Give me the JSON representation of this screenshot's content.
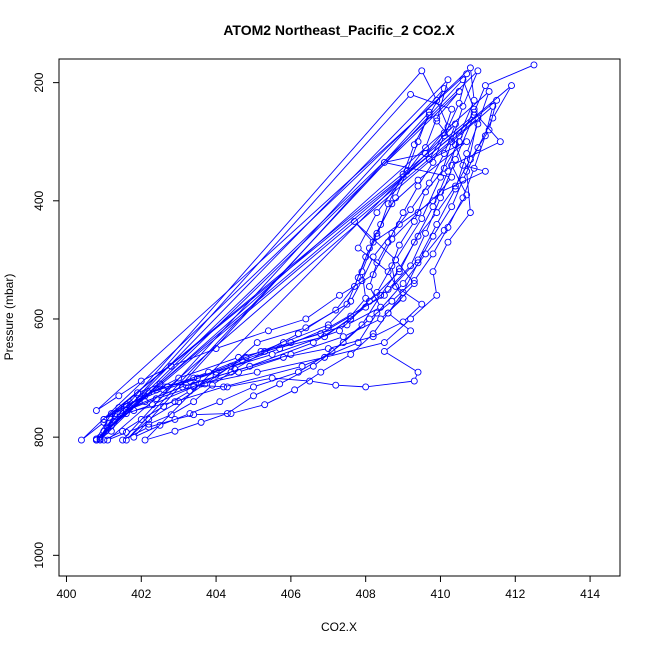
{
  "chart_data": {
    "type": "scatter",
    "title": "ATOM2 Northeast_Pacific_2 CO2.X",
    "xlabel": "CO2.X",
    "ylabel": "Pressure (mbar)",
    "xlim": [
      399.8,
      414.8
    ],
    "ylim": [
      1035,
      160
    ],
    "y_reversed": true,
    "x_ticks": [
      400,
      402,
      404,
      406,
      408,
      410,
      412,
      414
    ],
    "y_ticks": [
      200,
      400,
      600,
      800,
      1000
    ],
    "grid": false,
    "legend": "none",
    "marker": "open-circle",
    "line_connected": true,
    "series": [
      {
        "color": "#0000ff",
        "points": [
          [
            412.5,
            170
          ],
          [
            411.2,
            205
          ],
          [
            410.9,
            250
          ],
          [
            411.6,
            300
          ],
          [
            410.3,
            340
          ],
          [
            410.7,
            390
          ],
          [
            410.1,
            450
          ],
          [
            409.6,
            490
          ],
          [
            409.0,
            540
          ],
          [
            408.3,
            590
          ],
          [
            407.8,
            640
          ],
          [
            406.3,
            680
          ],
          [
            404.2,
            715
          ],
          [
            402.9,
            740
          ],
          [
            401.8,
            755
          ],
          [
            401.0,
            775
          ],
          [
            400.4,
            805
          ],
          [
            410.8,
            175
          ],
          [
            410.9,
            230
          ],
          [
            410.5,
            290
          ],
          [
            410.2,
            350
          ],
          [
            409.8,
            410
          ],
          [
            409.3,
            470
          ],
          [
            408.9,
            520
          ],
          [
            408.1,
            570
          ],
          [
            407.3,
            620
          ],
          [
            405.5,
            660
          ],
          [
            403.4,
            700
          ],
          [
            402.2,
            725
          ],
          [
            401.3,
            760
          ],
          [
            400.9,
            800
          ],
          [
            411.0,
            180
          ],
          [
            410.6,
            240
          ],
          [
            410.3,
            300
          ],
          [
            410.0,
            360
          ],
          [
            409.5,
            430
          ],
          [
            408.8,
            500
          ],
          [
            408.3,
            555
          ],
          [
            407.6,
            600
          ],
          [
            406.6,
            640
          ],
          [
            404.9,
            680
          ],
          [
            403.1,
            715
          ],
          [
            401.7,
            750
          ],
          [
            401.1,
            785
          ],
          [
            400.8,
            805
          ],
          [
            411.3,
            215
          ],
          [
            411.0,
            270
          ],
          [
            410.7,
            320
          ],
          [
            410.4,
            380
          ],
          [
            409.9,
            440
          ],
          [
            409.4,
            500
          ],
          [
            408.5,
            560
          ],
          [
            407.0,
            615
          ],
          [
            405.7,
            650
          ],
          [
            404.0,
            690
          ],
          [
            402.6,
            720
          ],
          [
            401.6,
            745
          ],
          [
            401.0,
            770
          ],
          [
            410.9,
            255
          ],
          [
            410.4,
            330
          ],
          [
            410.0,
            395
          ],
          [
            409.6,
            455
          ],
          [
            409.2,
            510
          ],
          [
            408.6,
            550
          ],
          [
            408.0,
            580
          ],
          [
            406.9,
            630
          ],
          [
            404.6,
            665
          ],
          [
            403.0,
            700
          ],
          [
            402.1,
            730
          ],
          [
            401.5,
            760
          ],
          [
            401.2,
            790
          ],
          [
            400.8,
            805
          ],
          [
            409.5,
            180
          ],
          [
            409.9,
            230
          ],
          [
            410.2,
            275
          ],
          [
            409.6,
            320
          ],
          [
            408.5,
            335
          ],
          [
            410.3,
            360
          ],
          [
            409.8,
            400
          ],
          [
            408.9,
            440
          ],
          [
            408.2,
            470
          ],
          [
            407.7,
            435
          ],
          [
            408.8,
            500
          ],
          [
            409.3,
            540
          ],
          [
            408.6,
            590
          ],
          [
            409.2,
            620
          ],
          [
            408.5,
            655
          ],
          [
            409.4,
            690
          ],
          [
            409.3,
            705
          ],
          [
            408.0,
            715
          ],
          [
            407.2,
            712
          ],
          [
            406.5,
            705
          ],
          [
            405.5,
            700
          ],
          [
            404.3,
            715
          ],
          [
            403.4,
            712
          ],
          [
            402.5,
            710
          ],
          [
            401.9,
            725
          ],
          [
            401.4,
            750
          ],
          [
            401.1,
            783
          ],
          [
            400.9,
            805
          ],
          [
            410.5,
            215
          ],
          [
            409.9,
            260
          ],
          [
            409.6,
            310
          ],
          [
            409.0,
            360
          ],
          [
            408.3,
            420
          ],
          [
            407.8,
            480
          ],
          [
            408.6,
            520
          ],
          [
            409.0,
            565
          ],
          [
            408.4,
            600
          ],
          [
            407.4,
            630
          ],
          [
            406.0,
            660
          ],
          [
            404.4,
            690
          ],
          [
            403.2,
            712
          ],
          [
            402.1,
            740
          ],
          [
            401.3,
            765
          ],
          [
            400.9,
            803
          ],
          [
            409.2,
            220
          ],
          [
            410.3,
            245
          ],
          [
            410.1,
            285
          ],
          [
            409.7,
            330
          ],
          [
            410.7,
            300
          ],
          [
            409.4,
            365
          ],
          [
            408.7,
            405
          ],
          [
            408.3,
            455
          ],
          [
            407.9,
            520
          ],
          [
            408.0,
            565
          ],
          [
            407.6,
            595
          ],
          [
            406.8,
            625
          ],
          [
            405.2,
            655
          ],
          [
            403.8,
            690
          ],
          [
            402.7,
            715
          ],
          [
            401.8,
            735
          ],
          [
            401.2,
            760
          ],
          [
            400.8,
            803
          ],
          [
            411.0,
            260
          ],
          [
            410.7,
            350
          ],
          [
            410.8,
            420
          ],
          [
            410.2,
            470
          ],
          [
            409.8,
            520
          ],
          [
            409.9,
            560
          ],
          [
            409.2,
            600
          ],
          [
            408.5,
            640
          ],
          [
            406.9,
            665
          ],
          [
            405.1,
            690
          ],
          [
            403.6,
            710
          ],
          [
            402.4,
            735
          ],
          [
            401.6,
            755
          ],
          [
            401.2,
            780
          ],
          [
            410.2,
            195
          ],
          [
            409.9,
            265
          ],
          [
            410.4,
            305
          ],
          [
            410.6,
            340
          ],
          [
            411.2,
            350
          ],
          [
            410.0,
            385
          ],
          [
            409.4,
            420
          ],
          [
            408.7,
            465
          ],
          [
            408.2,
            525
          ],
          [
            407.3,
            560
          ],
          [
            406.4,
            600
          ],
          [
            405.4,
            620
          ],
          [
            404.0,
            650
          ],
          [
            402.8,
            680
          ],
          [
            402.0,
            705
          ],
          [
            401.4,
            730
          ],
          [
            400.8,
            755
          ],
          [
            410.7,
            185
          ],
          [
            410.5,
            235
          ],
          [
            410.1,
            290
          ],
          [
            409.8,
            335
          ],
          [
            409.4,
            375
          ],
          [
            409.0,
            420
          ],
          [
            408.6,
            470
          ],
          [
            408.3,
            505
          ],
          [
            408.1,
            545
          ],
          [
            408.4,
            580
          ],
          [
            407.5,
            610
          ],
          [
            406.0,
            640
          ],
          [
            404.7,
            670
          ],
          [
            403.5,
            700
          ],
          [
            402.4,
            720
          ],
          [
            401.6,
            748
          ],
          [
            401.0,
            770
          ],
          [
            411.5,
            230
          ],
          [
            411.3,
            280
          ],
          [
            410.8,
            330
          ],
          [
            410.4,
            375
          ],
          [
            409.9,
            420
          ],
          [
            409.4,
            460
          ],
          [
            408.9,
            515
          ],
          [
            408.4,
            560
          ],
          [
            407.9,
            610
          ],
          [
            407.1,
            655
          ],
          [
            406.2,
            690
          ],
          [
            405.0,
            715
          ],
          [
            404.1,
            740
          ],
          [
            403.3,
            760
          ],
          [
            402.5,
            780
          ],
          [
            401.8,
            800
          ],
          [
            409.7,
            250
          ],
          [
            409.4,
            300
          ],
          [
            409.1,
            350
          ],
          [
            408.8,
            395
          ],
          [
            408.4,
            440
          ],
          [
            408.1,
            480
          ],
          [
            407.8,
            530
          ],
          [
            407.5,
            575
          ],
          [
            406.4,
            615
          ],
          [
            405.1,
            640
          ],
          [
            404.4,
            680
          ],
          [
            403.7,
            710
          ],
          [
            403.0,
            740
          ],
          [
            402.2,
            770
          ],
          [
            401.6,
            805
          ],
          [
            410.6,
            195
          ],
          [
            410.9,
            245
          ],
          [
            410.5,
            300
          ],
          [
            410.1,
            345
          ],
          [
            409.6,
            385
          ],
          [
            409.3,
            435
          ],
          [
            408.9,
            475
          ],
          [
            408.7,
            510
          ],
          [
            408.8,
            545
          ],
          [
            409.5,
            575
          ],
          [
            409.0,
            605
          ],
          [
            408.2,
            630
          ],
          [
            407.0,
            650
          ],
          [
            405.8,
            665
          ],
          [
            404.6,
            690
          ],
          [
            403.4,
            715
          ],
          [
            402.3,
            745
          ],
          [
            401.6,
            760
          ],
          [
            401.0,
            790
          ],
          [
            411.9,
            205
          ],
          [
            411.4,
            260
          ],
          [
            411.0,
            310
          ],
          [
            410.6,
            365
          ],
          [
            410.3,
            410
          ],
          [
            409.8,
            460
          ],
          [
            409.4,
            505
          ],
          [
            409.0,
            555
          ],
          [
            408.6,
            590
          ],
          [
            408.2,
            625
          ],
          [
            407.6,
            660
          ],
          [
            406.8,
            690
          ],
          [
            406.1,
            720
          ],
          [
            405.3,
            745
          ],
          [
            404.4,
            760
          ],
          [
            403.4,
            762
          ],
          [
            402.9,
            770
          ],
          [
            402.2,
            783
          ],
          [
            401.5,
            805
          ],
          [
            410.1,
            210
          ],
          [
            409.7,
            255
          ],
          [
            409.3,
            305
          ],
          [
            409.0,
            355
          ],
          [
            408.6,
            405
          ],
          [
            408.3,
            460
          ],
          [
            408.0,
            495
          ],
          [
            407.7,
            545
          ],
          [
            407.2,
            585
          ],
          [
            406.2,
            625
          ],
          [
            405.3,
            655
          ],
          [
            404.5,
            685
          ],
          [
            403.9,
            712
          ],
          [
            403.4,
            740
          ],
          [
            402.8,
            762
          ],
          [
            402.2,
            778
          ],
          [
            401.6,
            792
          ],
          [
            401.1,
            805
          ],
          [
            411.4,
            240
          ],
          [
            411.2,
            290
          ],
          [
            410.9,
            345
          ],
          [
            410.6,
            395
          ],
          [
            410.2,
            445
          ],
          [
            409.8,
            490
          ],
          [
            409.3,
            535
          ],
          [
            408.7,
            570
          ],
          [
            408.1,
            600
          ],
          [
            407.4,
            640
          ],
          [
            406.6,
            680
          ],
          [
            405.7,
            710
          ],
          [
            405.0,
            730
          ],
          [
            404.3,
            760
          ],
          [
            403.6,
            775
          ],
          [
            402.9,
            790
          ],
          [
            402.1,
            805
          ],
          [
            410.4,
            270
          ],
          [
            410.1,
            320
          ],
          [
            409.7,
            370
          ],
          [
            409.2,
            415
          ],
          [
            408.7,
            455
          ],
          [
            408.2,
            495
          ],
          [
            407.9,
            535
          ],
          [
            407.6,
            570
          ],
          [
            407.0,
            610
          ],
          [
            405.8,
            640
          ],
          [
            404.8,
            665
          ],
          [
            404.0,
            695
          ],
          [
            403.3,
            722
          ],
          [
            402.6,
            748
          ],
          [
            402.0,
            770
          ],
          [
            401.5,
            790
          ],
          [
            401.0,
            805
          ]
        ]
      }
    ]
  }
}
